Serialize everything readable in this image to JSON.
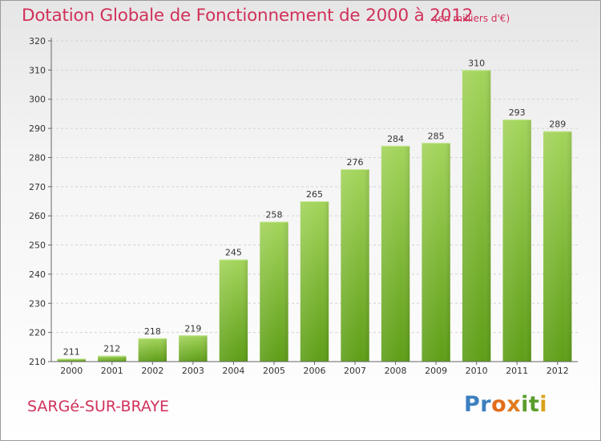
{
  "chart_data": {
    "type": "bar",
    "title": "Dotation Globale de Fonctionnement de 2000 à 2012",
    "subtitle": "(en milliers d'€)",
    "categories": [
      "2000",
      "2001",
      "2002",
      "2003",
      "2004",
      "2005",
      "2006",
      "2007",
      "2008",
      "2009",
      "2010",
      "2011",
      "2012"
    ],
    "values": [
      211,
      212,
      218,
      219,
      245,
      258,
      265,
      276,
      284,
      285,
      310,
      293,
      289
    ],
    "yticks": [
      210,
      220,
      230,
      240,
      250,
      260,
      270,
      280,
      290,
      300,
      310,
      320
    ],
    "ylim": [
      210,
      320
    ],
    "xlabel": "",
    "ylabel": "",
    "bar_color_light": "#9dd051",
    "bar_color_dark": "#5e9e17"
  },
  "place_name": "SARGé-SUR-BRAYE",
  "brand": {
    "letters": [
      "P",
      "r",
      "o",
      "x",
      "i",
      "t",
      "i"
    ]
  },
  "colors": {
    "accent": "#d1315a",
    "axis": "#666666"
  }
}
